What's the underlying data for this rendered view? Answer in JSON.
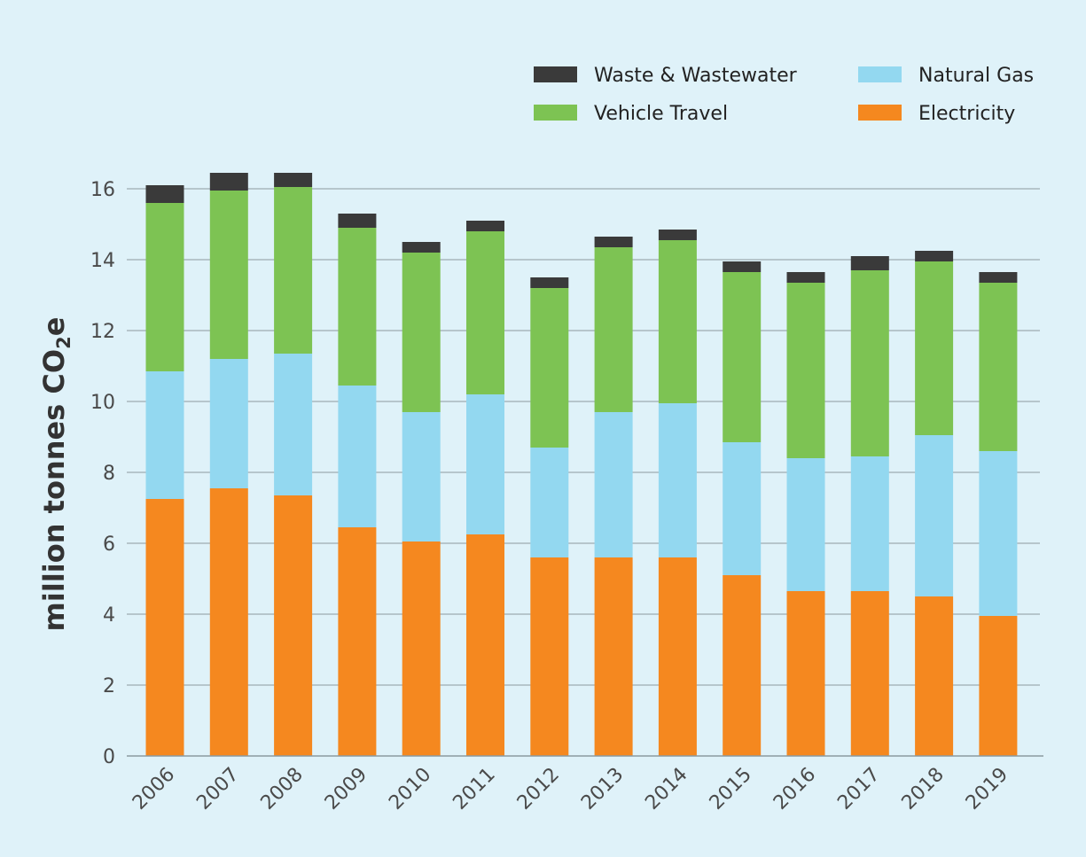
{
  "chart_data": {
    "type": "bar",
    "stacked": true,
    "categories": [
      "2006",
      "2007",
      "2008",
      "2009",
      "2010",
      "2011",
      "2012",
      "2013",
      "2014",
      "2015",
      "2016",
      "2017",
      "2018",
      "2019"
    ],
    "series": [
      {
        "name": "Electricity",
        "color": "#f5881f",
        "values": [
          7.25,
          7.55,
          7.35,
          6.45,
          6.05,
          6.25,
          5.6,
          5.6,
          5.6,
          5.1,
          4.65,
          4.65,
          4.5,
          3.95
        ]
      },
      {
        "name": "Natural Gas",
        "color": "#93d8f0",
        "values": [
          3.6,
          3.65,
          4.0,
          4.0,
          3.65,
          3.95,
          3.1,
          4.1,
          4.35,
          3.75,
          3.75,
          3.8,
          4.55,
          4.65
        ]
      },
      {
        "name": "Vehicle Travel",
        "color": "#7dc353",
        "values": [
          4.75,
          4.75,
          4.7,
          4.45,
          4.5,
          4.6,
          4.5,
          4.65,
          4.6,
          4.8,
          4.95,
          5.25,
          4.9,
          4.75
        ]
      },
      {
        "name": "Waste & Wastewater",
        "color": "#3a3a3a",
        "values": [
          0.5,
          0.5,
          0.4,
          0.4,
          0.3,
          0.3,
          0.3,
          0.3,
          0.3,
          0.3,
          0.3,
          0.4,
          0.3,
          0.3
        ]
      }
    ],
    "ylabel_main": "million tonnes CO",
    "ylabel_sub": "2",
    "ylabel_end": "e",
    "xlabel": "",
    "ylim": [
      0,
      16
    ],
    "yticks": [
      "0",
      "2",
      "4",
      "6",
      "8",
      "10",
      "12",
      "14",
      "16"
    ],
    "legend": {
      "placement": "top-right",
      "order": [
        "Waste & Wastewater",
        "Natural Gas",
        "Vehicle Travel",
        "Electricity"
      ]
    }
  }
}
